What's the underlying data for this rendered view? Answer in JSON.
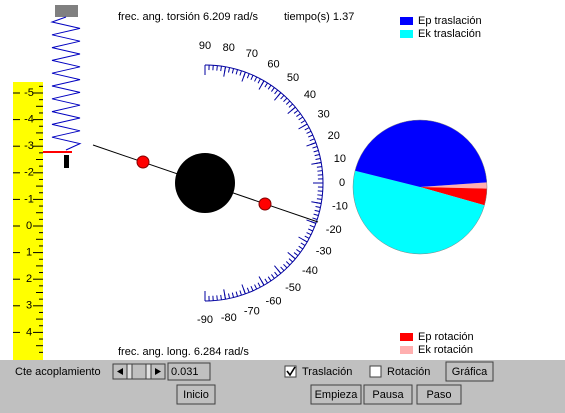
{
  "header": {
    "torsion": "frec. ang. torsión 6.209 rad/s",
    "time": "tiempo(s) 1.37",
    "longitudinal": "frec. ang. long. 6.284 rad/s"
  },
  "ruler": {
    "ticks": [
      -5,
      -4,
      -3,
      -2,
      -1,
      0,
      1,
      2,
      3,
      4
    ]
  },
  "protractor": {
    "ticks": [
      90,
      80,
      70,
      60,
      50,
      40,
      30,
      20,
      10,
      0,
      -10,
      -20,
      -30,
      -40,
      -50,
      -60,
      -70,
      -80,
      -90
    ]
  },
  "chart_data": {
    "type": "pie",
    "categories": [
      "Ep traslación",
      "Ek traslación",
      "Ep rotación",
      "Ek rotación"
    ],
    "values": [
      45,
      49.5,
      4,
      1.5
    ],
    "colors": [
      "#0000ff",
      "#00ffff",
      "#ff0000",
      "#ffafaf"
    ]
  },
  "controls": {
    "coupling_label": "Cte acoplamiento",
    "coupling_value": "0.031",
    "translation": "Traslación",
    "rotation": "Rotación",
    "graph": "Gráfica",
    "reset": "Inicio",
    "start": "Empieza",
    "pause": "Pausa",
    "step": "Paso"
  }
}
